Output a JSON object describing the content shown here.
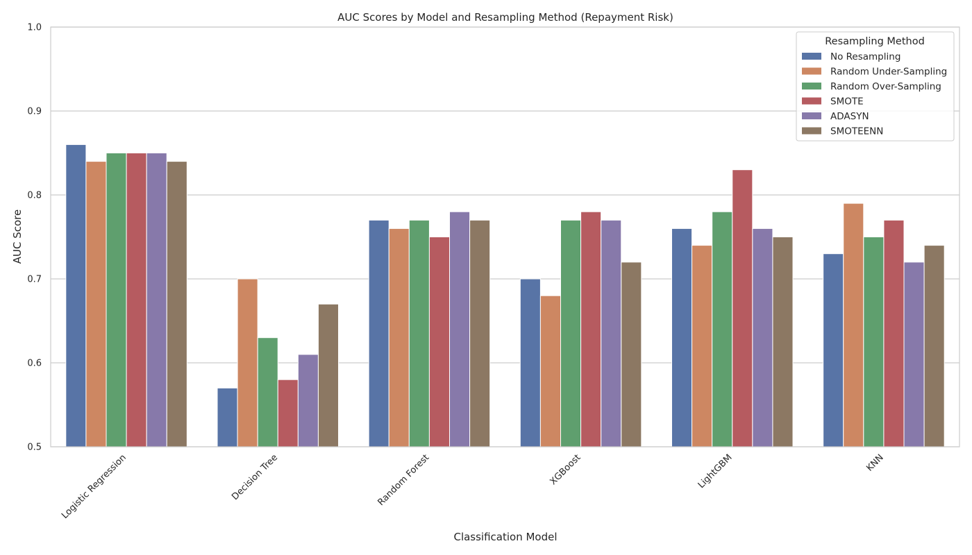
{
  "chart_data": {
    "type": "bar",
    "title": "AUC Scores by Model and Resampling Method (Repayment Risk)",
    "xlabel": "Classification Model",
    "ylabel": "AUC Score",
    "ylim": [
      0.5,
      1.0
    ],
    "yticks": [
      "0.5",
      "0.6",
      "0.7",
      "0.8",
      "0.9",
      "1.0"
    ],
    "categories": [
      "Logistic Regression",
      "Decision Tree",
      "Random Forest",
      "XGBoost",
      "LightGBM",
      "KNN"
    ],
    "grid": "horizontal",
    "legend": {
      "title": "Resampling Method",
      "placement": "top-right"
    },
    "series": [
      {
        "name": "No Resampling",
        "color": "#5874a6",
        "values": [
          0.86,
          0.57,
          0.77,
          0.7,
          0.76,
          0.73
        ]
      },
      {
        "name": "Random Under-Sampling",
        "color": "#cd8762",
        "values": [
          0.84,
          0.7,
          0.76,
          0.68,
          0.74,
          0.79
        ]
      },
      {
        "name": "Random Over-Sampling",
        "color": "#5f9f6e",
        "values": [
          0.85,
          0.63,
          0.77,
          0.77,
          0.78,
          0.75
        ]
      },
      {
        "name": "SMOTE",
        "color": "#b65b60",
        "values": [
          0.85,
          0.58,
          0.75,
          0.78,
          0.83,
          0.77
        ]
      },
      {
        "name": "ADASYN",
        "color": "#8779aa",
        "values": [
          0.85,
          0.61,
          0.78,
          0.77,
          0.76,
          0.72
        ]
      },
      {
        "name": "SMOTEENN",
        "color": "#8c7863",
        "values": [
          0.84,
          0.67,
          0.77,
          0.72,
          0.75,
          0.74
        ]
      }
    ]
  }
}
